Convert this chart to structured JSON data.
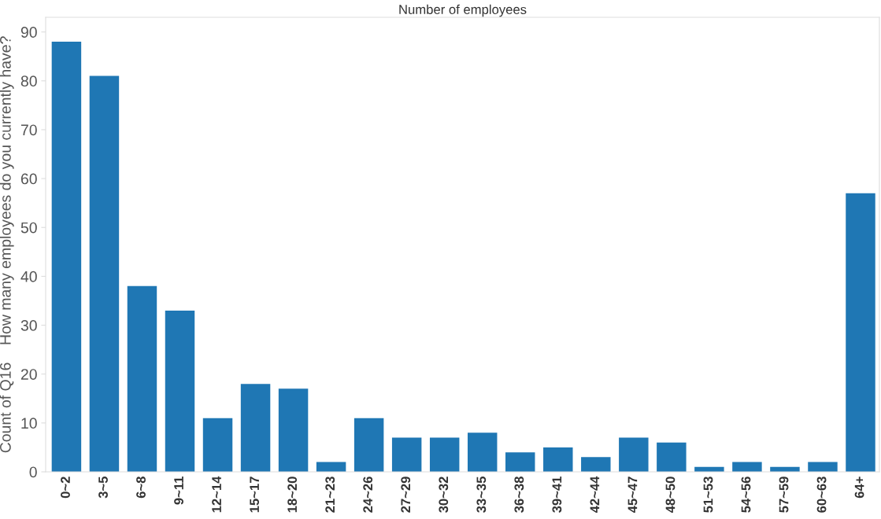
{
  "chart_data": {
    "type": "bar",
    "title": "Number of employees",
    "ylabel": "Count of Q16    How many employees do you currently have?",
    "categories": [
      "0~2",
      "3~5",
      "6~8",
      "9~11",
      "12~14",
      "15~17",
      "18~20",
      "21~23",
      "24~26",
      "27~29",
      "30~32",
      "33~35",
      "36~38",
      "39~41",
      "42~44",
      "45~47",
      "48~50",
      "51~53",
      "54~56",
      "57~59",
      "60~63",
      "64+"
    ],
    "values": [
      88,
      81,
      38,
      33,
      11,
      18,
      17,
      2,
      11,
      7,
      7,
      8,
      4,
      5,
      3,
      7,
      6,
      1,
      2,
      1,
      2,
      57
    ],
    "color": "#1f77b4",
    "ylim": [
      0,
      93
    ],
    "yticks": [
      0,
      10,
      20,
      30,
      40,
      50,
      60,
      70,
      80,
      90
    ],
    "grid": false,
    "legend": false
  }
}
